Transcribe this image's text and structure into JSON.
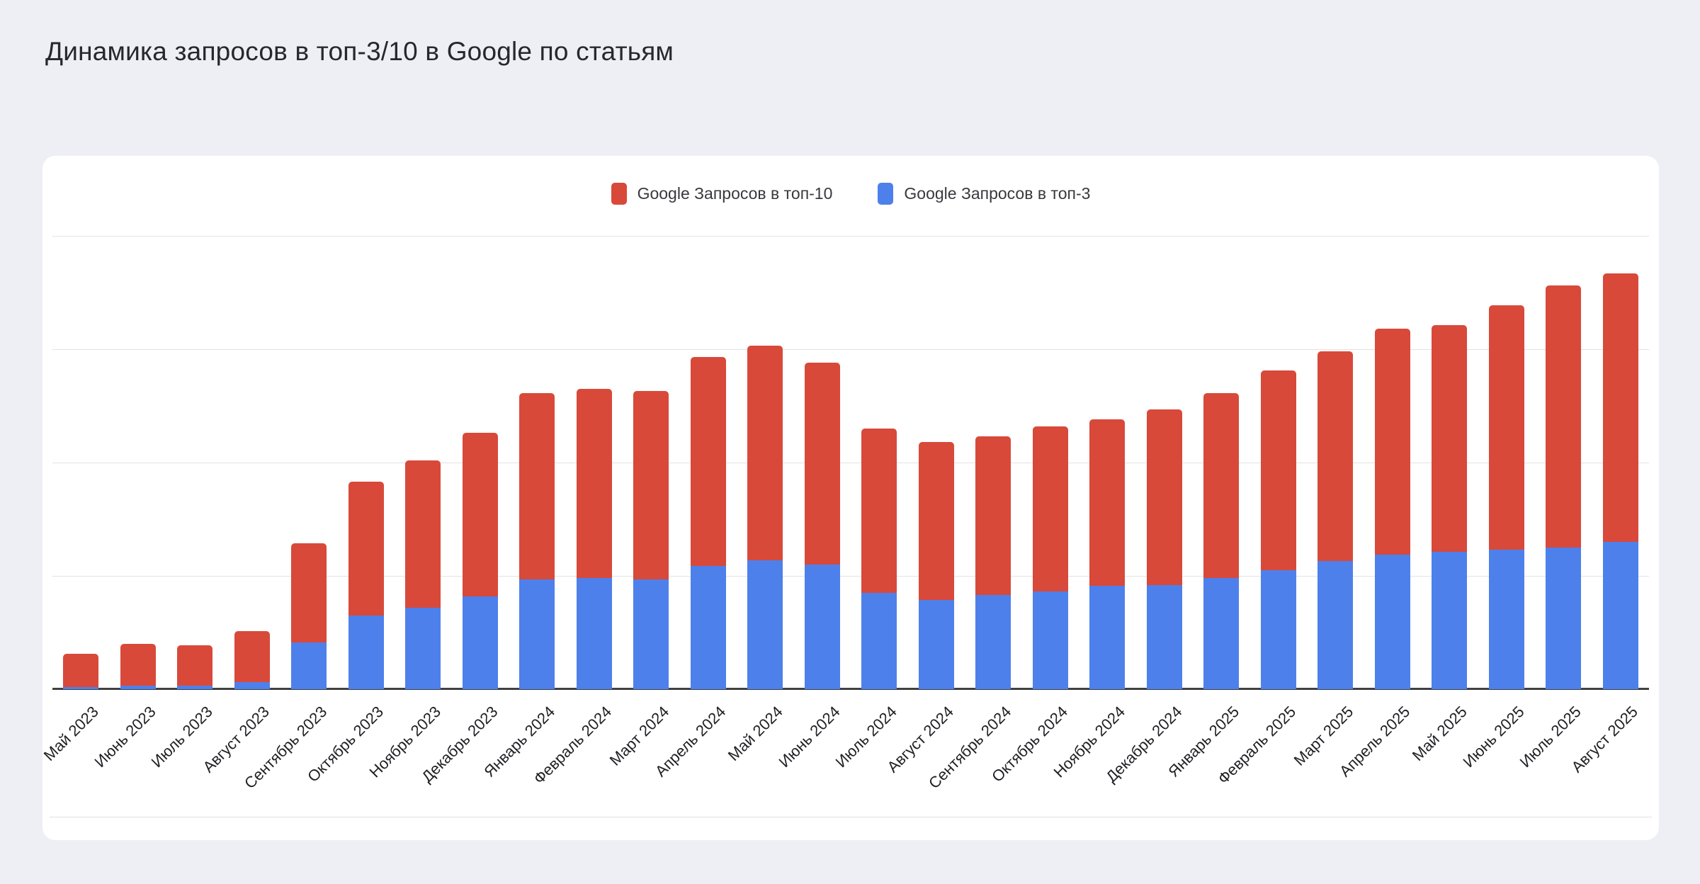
{
  "page_title": "Динамика запросов в топ-3/10 в Google по статьям",
  "legend": {
    "items": [
      {
        "label": "Google Запросов в топ-10",
        "color": "#d8493a"
      },
      {
        "label": "Google Запросов в топ-3",
        "color": "#4e80eb"
      }
    ]
  },
  "chart_data": {
    "type": "bar",
    "stacked": true,
    "title": "Динамика запросов в топ-3/10 в Google по статьям",
    "legend_position": "top-center",
    "grid": true,
    "y_axis": {
      "min": 0,
      "max": 400,
      "gridline_step": 100,
      "tick_labels_visible": false
    },
    "categories": [
      "Май 2023",
      "Июнь 2023",
      "Июль 2023",
      "Август 2023",
      "Сентябрь 2023",
      "Октябрь 2023",
      "Ноябрь 2023",
      "Декабрь 2023",
      "Январь 2024",
      "Февраль 2024",
      "Март 2024",
      "Апрель 2024",
      "Май 2024",
      "Июнь 2024",
      "Июль 2024",
      "Август 2024",
      "Сентябрь 2024",
      "Октябрь 2024",
      "Ноябрь 2024",
      "Декабрь 2024",
      "Январь 2025",
      "Февраль 2025",
      "Март 2025",
      "Апрель 2025",
      "Май 2025",
      "Июнь 2025",
      "Июль 2025",
      "Август 2025"
    ],
    "series": [
      {
        "name": "Google Запросов в топ-10",
        "color": "#d8493a",
        "role": "stack-total-top",
        "values": [
          31,
          40,
          39,
          51,
          129,
          183,
          202,
          226,
          261,
          265,
          263,
          293,
          303,
          288,
          230,
          218,
          223,
          232,
          238,
          247,
          261,
          281,
          298,
          318,
          321,
          339,
          356,
          367
        ]
      },
      {
        "name": "Google Запросов в топ-3",
        "color": "#4e80eb",
        "role": "stack-bottom-subset",
        "values": [
          2,
          3,
          3,
          6,
          41,
          65,
          72,
          82,
          97,
          98,
          97,
          109,
          114,
          110,
          85,
          79,
          83,
          86,
          91,
          92,
          98,
          105,
          113,
          119,
          121,
          123,
          125,
          130
        ]
      }
    ]
  },
  "colors": {
    "background": "#edeff4",
    "card": "#ffffff",
    "gridline": "#e2e2e2",
    "axis_line": "#404040",
    "top10_red": "#d8493a",
    "top3_blue": "#4e80eb"
  }
}
